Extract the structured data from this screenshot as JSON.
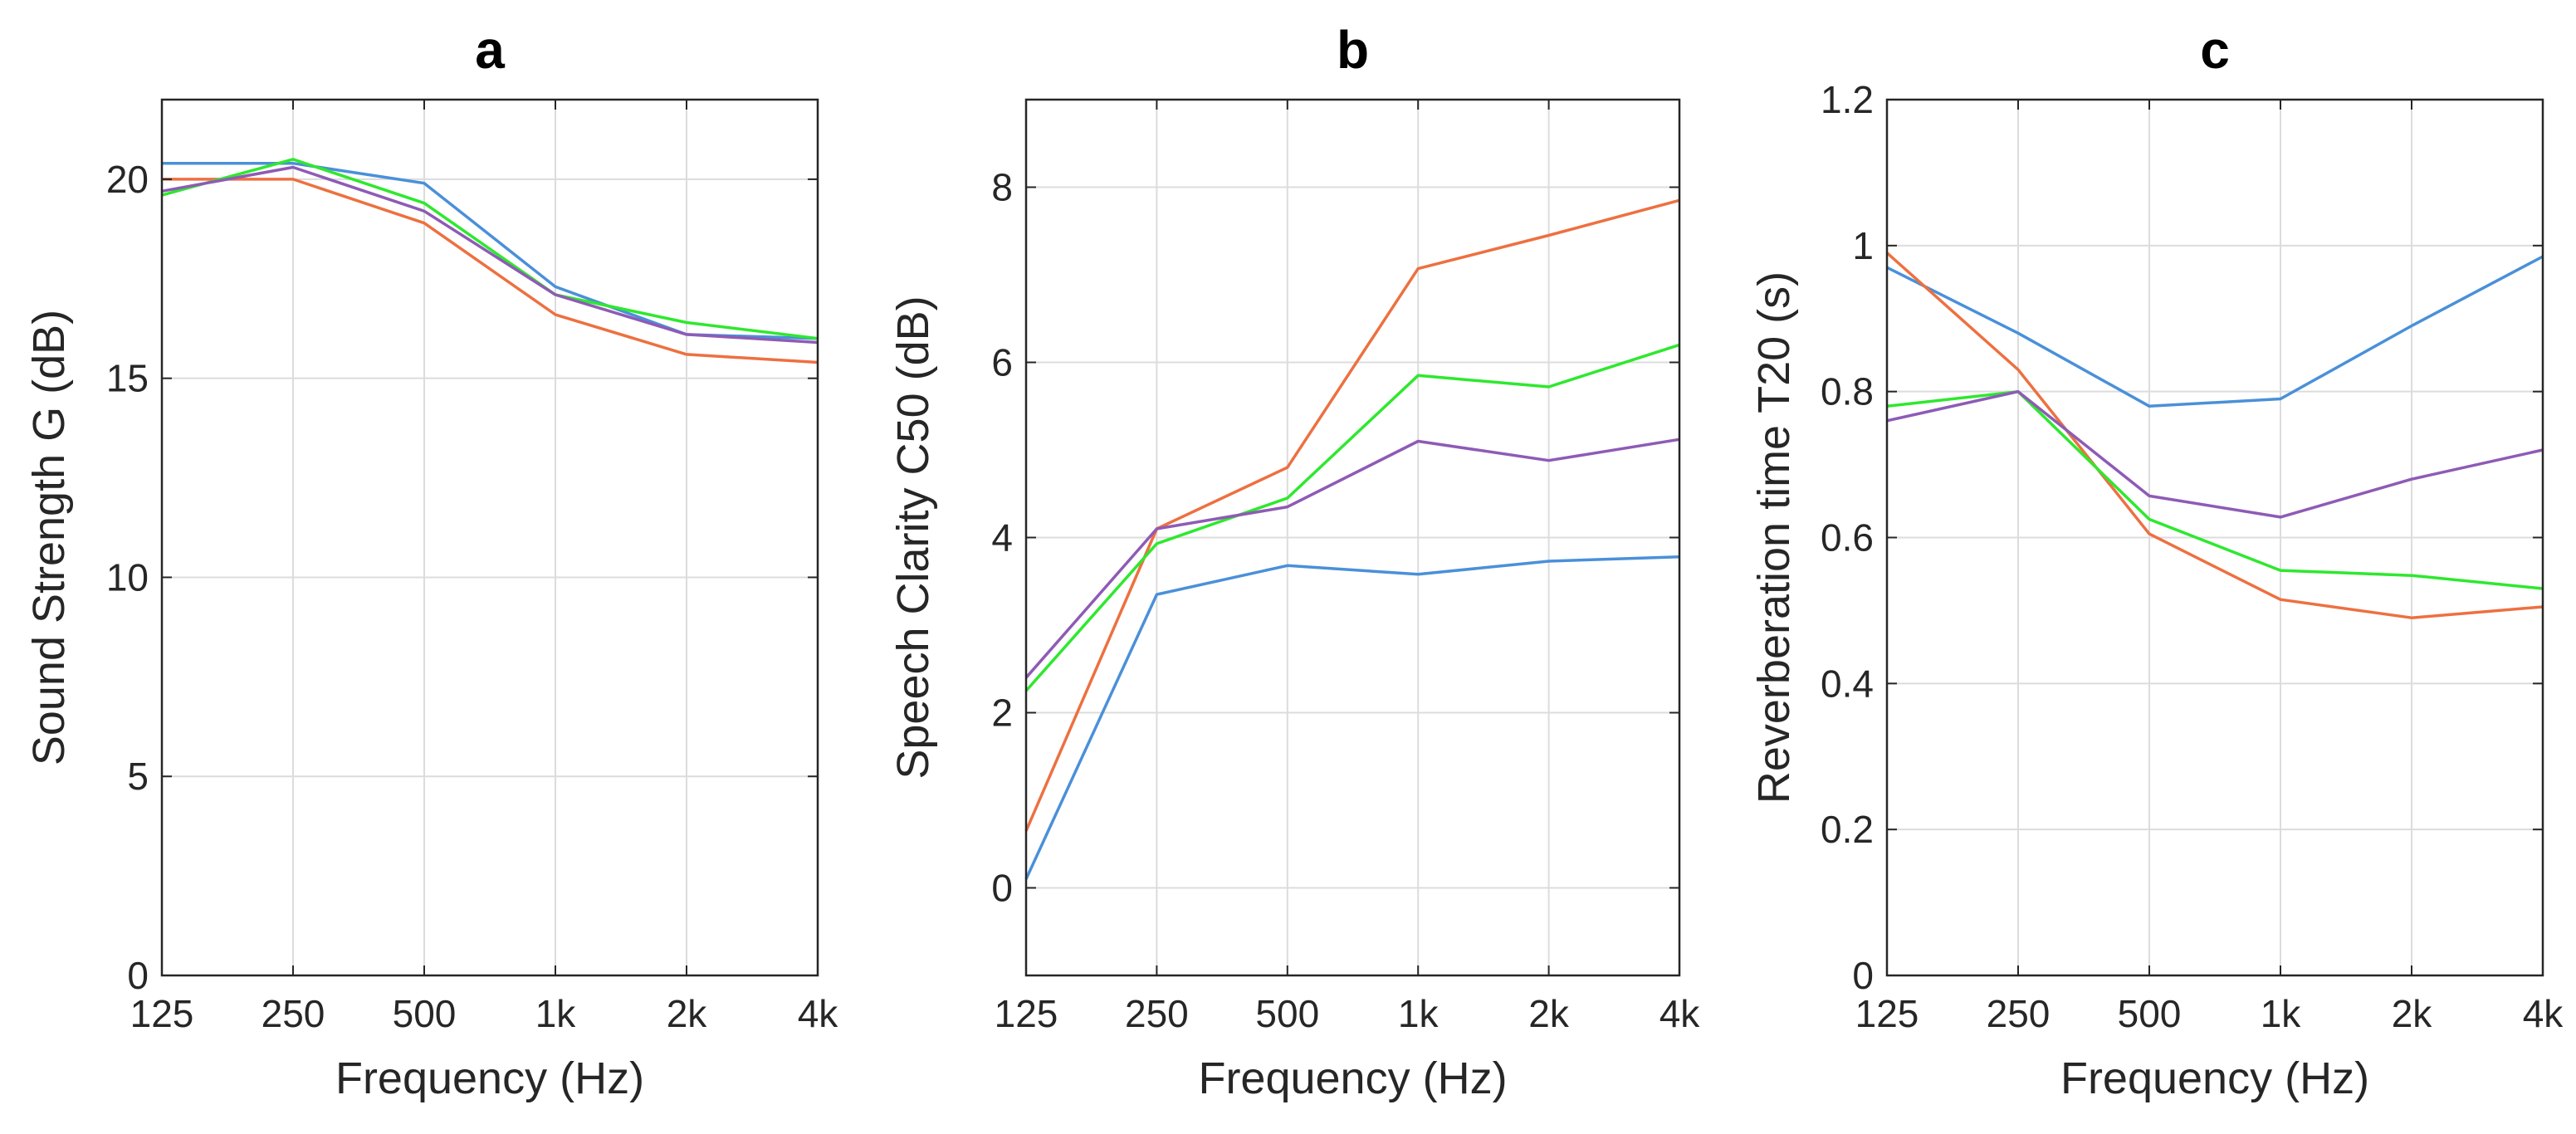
{
  "chart_data": [
    {
      "type": "line",
      "title": "a",
      "xlabel": "Frequency (Hz)",
      "ylabel": "Sound Strength G (dB)",
      "categories": [
        "125",
        "250",
        "500",
        "1k",
        "2k",
        "4k"
      ],
      "ylim": [
        0,
        22
      ],
      "yticks": [
        0,
        5,
        10,
        15,
        20
      ],
      "grid": true,
      "series": [
        {
          "color": "#4a90d9",
          "values": [
            20.4,
            20.4,
            19.9,
            17.3,
            16.1,
            16.0
          ]
        },
        {
          "color": "#ed7040",
          "values": [
            20.0,
            20.0,
            18.9,
            16.6,
            15.6,
            15.4
          ]
        },
        {
          "color": "#2ee82e",
          "values": [
            19.6,
            20.5,
            19.4,
            17.1,
            16.4,
            16.0
          ]
        },
        {
          "color": "#8e5bb5",
          "values": [
            19.7,
            20.3,
            19.2,
            17.1,
            16.1,
            15.9
          ]
        }
      ]
    },
    {
      "type": "line",
      "title": "b",
      "xlabel": "Frequency (Hz)",
      "ylabel": "Speech Clarity C50 (dB)",
      "categories": [
        "125",
        "250",
        "500",
        "1k",
        "2k",
        "4k"
      ],
      "ylim": [
        -1,
        9
      ],
      "yticks": [
        0,
        2,
        4,
        6,
        8
      ],
      "grid": true,
      "series": [
        {
          "color": "#4a90d9",
          "values": [
            0.1,
            3.35,
            3.68,
            3.58,
            3.73,
            3.78
          ]
        },
        {
          "color": "#ed7040",
          "values": [
            0.65,
            4.1,
            4.8,
            7.07,
            7.45,
            7.85
          ]
        },
        {
          "color": "#2ee82e",
          "values": [
            2.25,
            3.93,
            4.45,
            5.85,
            5.72,
            6.2
          ]
        },
        {
          "color": "#8e5bb5",
          "values": [
            2.4,
            4.1,
            4.35,
            5.1,
            4.88,
            5.12
          ]
        }
      ]
    },
    {
      "type": "line",
      "title": "c",
      "xlabel": "Frequency (Hz)",
      "ylabel": "Reverberation time T20 (s)",
      "categories": [
        "125",
        "250",
        "500",
        "1k",
        "2k",
        "4k"
      ],
      "ylim": [
        0,
        1.2
      ],
      "yticks": [
        0,
        0.2,
        0.4,
        0.6,
        0.8,
        1,
        1.2
      ],
      "ytick_labels": [
        "0",
        "0.2",
        "0.4",
        "0.6",
        "0.8",
        "1",
        "1.2"
      ],
      "grid": true,
      "series": [
        {
          "color": "#4a90d9",
          "values": [
            0.97,
            0.88,
            0.78,
            0.79,
            0.89,
            0.985
          ]
        },
        {
          "color": "#ed7040",
          "values": [
            0.99,
            0.83,
            0.605,
            0.515,
            0.49,
            0.505
          ]
        },
        {
          "color": "#2ee82e",
          "values": [
            0.78,
            0.8,
            0.625,
            0.555,
            0.548,
            0.53
          ]
        },
        {
          "color": "#8e5bb5",
          "values": [
            0.76,
            0.8,
            0.657,
            0.628,
            0.68,
            0.72
          ]
        }
      ]
    }
  ]
}
